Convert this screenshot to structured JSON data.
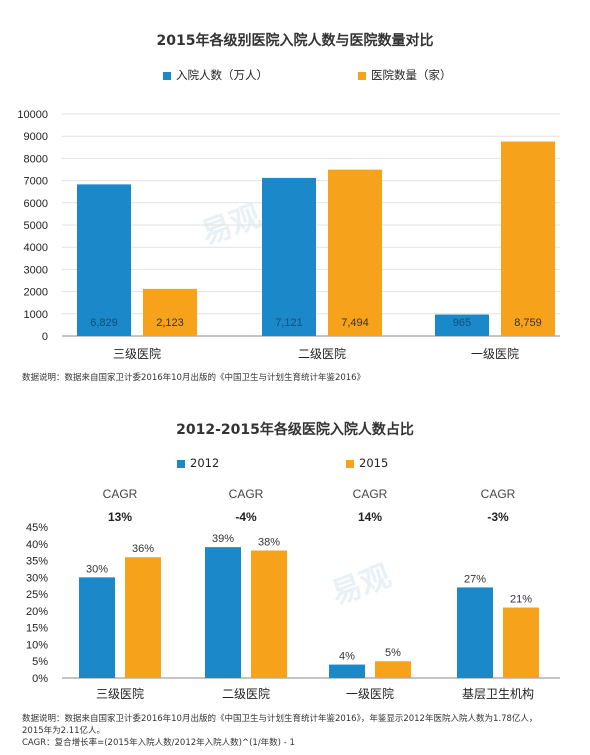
{
  "chart_data": [
    {
      "type": "bar",
      "title": "2015年各级别医院入院人数与医院数量对比",
      "categories": [
        "三级医院",
        "二级医院",
        "一级医院"
      ],
      "series": [
        {
          "name": "入院人数（万人）",
          "color": "#1a88c9",
          "values": [
            6829,
            7121,
            965
          ],
          "labels": [
            "6,829",
            "7,121",
            "965"
          ]
        },
        {
          "name": "医院数量（家）",
          "color": "#f7a21b",
          "values": [
            2123,
            7494,
            8759
          ],
          "labels": [
            "2,123",
            "7,494",
            "8,759"
          ]
        }
      ],
      "ylim": [
        0,
        10000
      ],
      "yticks": [
        "0",
        "1000",
        "2000",
        "3000",
        "4000",
        "5000",
        "6000",
        "7000",
        "8000",
        "9000",
        "10000"
      ],
      "source": "数据说明：数据来自国家卫计委2016年10月出版的《中国卫生与计划生育统计年鉴2016》"
    },
    {
      "type": "bar",
      "title": "2012-2015年各级医院入院人数占比",
      "categories": [
        "三级医院",
        "二级医院",
        "一级医院",
        "基层卫生机构"
      ],
      "series": [
        {
          "name": "2012",
          "color": "#1a88c9",
          "values": [
            30,
            39,
            4,
            27
          ],
          "labels": [
            "30%",
            "39%",
            "4%",
            "27%"
          ]
        },
        {
          "name": "2015",
          "color": "#f7a21b",
          "values": [
            36,
            38,
            5,
            21
          ],
          "labels": [
            "36%",
            "38%",
            "5%",
            "21%"
          ]
        }
      ],
      "cagr_label": "CAGR",
      "cagr": [
        "13%",
        "-4%",
        "14%",
        "-3%"
      ],
      "ylim": [
        0,
        45
      ],
      "yticks": [
        "0%",
        "5%",
        "10%",
        "15%",
        "20%",
        "25%",
        "30%",
        "35%",
        "40%",
        "45%"
      ],
      "source_lines": [
        "数据说明：数据来自国家卫计委2016年10月出版的《中国卫生与计划生育统计年鉴2016》，年鉴显示2012年医院入院人数为1.78亿人，",
        "2015年为2.11亿人。",
        "CAGR：复合增长率=(2015年入院人数/2012年入院人数)^(1/年数) - 1"
      ]
    }
  ],
  "watermark": {
    "brand": "易观"
  }
}
